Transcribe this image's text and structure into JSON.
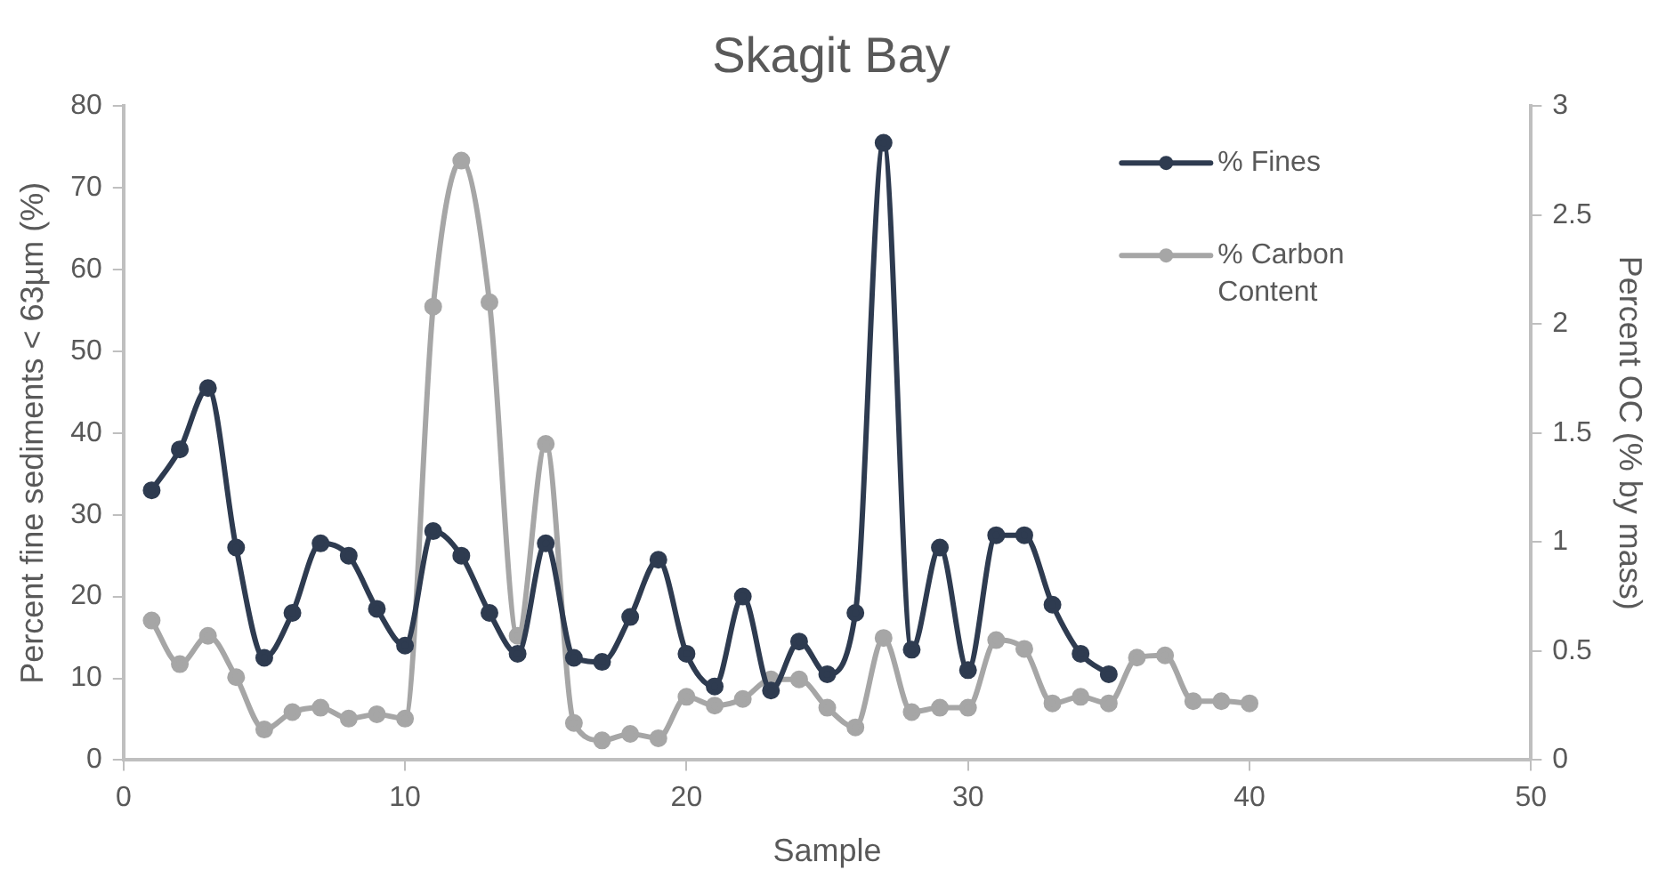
{
  "chart_data": {
    "type": "line",
    "title": "Skagit Bay",
    "xlabel": "Sample",
    "ylabel": "Percent fine sediments < 63µm (%)",
    "y2label": "Percent OC (% by mass)",
    "xlim": [
      0,
      50
    ],
    "xticks": [
      0,
      10,
      20,
      30,
      40,
      50
    ],
    "ylim": [
      0,
      80
    ],
    "yticks": [
      0,
      10,
      20,
      30,
      40,
      50,
      60,
      70,
      80
    ],
    "y2lim": [
      0,
      3
    ],
    "y2ticks": [
      0,
      0.5,
      1,
      1.5,
      2,
      2.5,
      3
    ],
    "grid": false,
    "legend": "right",
    "marker": "circle",
    "line_style": "solid",
    "series": [
      {
        "name": "% Fines",
        "color": "#2e3b50",
        "x": [
          1,
          2,
          3,
          4,
          5,
          6,
          7,
          8,
          9,
          10,
          11,
          12,
          13,
          14,
          15,
          16,
          17,
          18,
          19,
          20,
          21,
          22,
          23,
          24,
          25,
          26,
          27,
          28,
          29,
          30,
          31,
          32,
          33,
          34,
          35
        ],
        "values": [
          33,
          38,
          45.5,
          26,
          12.5,
          18,
          26.5,
          25,
          18.5,
          14,
          28,
          25,
          18,
          13,
          26.5,
          12.5,
          12,
          17.5,
          24.5,
          13,
          9,
          20,
          8.5,
          14.5,
          10.5,
          18,
          75.5,
          13.5,
          26,
          11,
          27.5,
          27.5,
          19,
          13,
          10.5
        ]
      },
      {
        "name": "% Carbon Content",
        "color": "#a6a6a6",
        "axis": "y2",
        "x": [
          1,
          2,
          3,
          4,
          5,
          6,
          7,
          8,
          9,
          10,
          11,
          12,
          13,
          14,
          15,
          16,
          17,
          18,
          19,
          20,
          21,
          22,
          23,
          24,
          25,
          26,
          27,
          28,
          29,
          30,
          31,
          32,
          33,
          34,
          35,
          36,
          37,
          38,
          39,
          40
        ],
        "values": [
          0.64,
          0.44,
          0.57,
          0.38,
          0.14,
          0.22,
          0.24,
          0.19,
          0.21,
          0.19,
          2.08,
          2.75,
          2.1,
          0.57,
          1.45,
          0.17,
          0.09,
          0.12,
          0.1,
          0.29,
          0.25,
          0.28,
          0.37,
          0.37,
          0.24,
          0.15,
          0.56,
          0.22,
          0.24,
          0.24,
          0.55,
          0.51,
          0.26,
          0.29,
          0.26,
          0.47,
          0.48,
          0.27,
          0.27,
          0.26
        ]
      }
    ]
  }
}
